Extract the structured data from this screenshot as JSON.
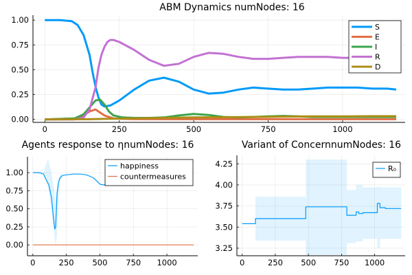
{
  "chart_data": [
    {
      "type": "line",
      "title": "ABM Dynamics numNodes: 16",
      "xlim": [
        -40,
        1210
      ],
      "ylim": [
        -0.03,
        1.05
      ],
      "xticks": [
        0,
        250,
        500,
        750,
        1000
      ],
      "xtick_labels": [
        "0",
        "250",
        "500",
        "750",
        "1000"
      ],
      "yticks": [
        0,
        0.25,
        0.5,
        0.75,
        1
      ],
      "ytick_labels": [
        "0.00",
        "0.25",
        "0.50",
        "0.75",
        "1.00"
      ],
      "grid": true,
      "legend_position": "top-right",
      "series": [
        {
          "name": "S",
          "color": "#009af9",
          "x": [
            0,
            50,
            90,
            110,
            130,
            150,
            160,
            170,
            180,
            190,
            200,
            220,
            250,
            300,
            350,
            400,
            450,
            500,
            550,
            600,
            650,
            700,
            750,
            800,
            850,
            900,
            950,
            1000,
            1050,
            1100,
            1150,
            1180
          ],
          "y": [
            1.0,
            1.0,
            0.99,
            0.95,
            0.85,
            0.65,
            0.48,
            0.33,
            0.22,
            0.15,
            0.13,
            0.14,
            0.19,
            0.3,
            0.39,
            0.42,
            0.38,
            0.3,
            0.26,
            0.27,
            0.3,
            0.32,
            0.31,
            0.3,
            0.3,
            0.31,
            0.32,
            0.32,
            0.32,
            0.31,
            0.31,
            0.3
          ]
        },
        {
          "name": "E",
          "color": "#e26f46",
          "x": [
            0,
            100,
            130,
            150,
            170,
            180,
            200,
            230,
            260,
            300,
            400,
            600,
            800,
            1000,
            1180
          ],
          "y": [
            0.0,
            0.01,
            0.04,
            0.08,
            0.1,
            0.08,
            0.04,
            0.01,
            0.005,
            0.003,
            0.002,
            0.002,
            0.002,
            0.002,
            0.002
          ]
        },
        {
          "name": "I",
          "color": "#3da44d",
          "x": [
            0,
            100,
            130,
            150,
            170,
            185,
            200,
            215,
            230,
            260,
            300,
            350,
            400,
            450,
            500,
            550,
            600,
            650,
            700,
            750,
            800,
            850,
            900,
            950,
            1000,
            1050,
            1100,
            1180
          ],
          "y": [
            0.0,
            0.01,
            0.05,
            0.12,
            0.19,
            0.2,
            0.15,
            0.08,
            0.04,
            0.02,
            0.015,
            0.015,
            0.02,
            0.04,
            0.055,
            0.045,
            0.025,
            0.02,
            0.025,
            0.03,
            0.035,
            0.03,
            0.025,
            0.025,
            0.025,
            0.025,
            0.025,
            0.025
          ]
        },
        {
          "name": "R",
          "color": "#c271d2",
          "x": [
            0,
            100,
            130,
            150,
            170,
            180,
            190,
            200,
            210,
            220,
            230,
            250,
            300,
            350,
            400,
            450,
            500,
            550,
            600,
            650,
            700,
            750,
            800,
            850,
            900,
            950,
            1000,
            1050,
            1100,
            1150,
            1180
          ],
          "y": [
            0.0,
            0.0,
            0.02,
            0.1,
            0.32,
            0.52,
            0.65,
            0.73,
            0.78,
            0.8,
            0.8,
            0.78,
            0.7,
            0.6,
            0.54,
            0.56,
            0.63,
            0.67,
            0.66,
            0.63,
            0.61,
            0.61,
            0.62,
            0.63,
            0.63,
            0.63,
            0.62,
            0.62,
            0.62,
            0.62,
            0.62
          ]
        },
        {
          "name": "D",
          "color": "#ac8d18",
          "x": [
            0,
            150,
            200,
            300,
            400,
            500,
            600,
            700,
            800,
            900,
            1000,
            1100,
            1180
          ],
          "y": [
            0.0,
            0.002,
            0.005,
            0.01,
            0.015,
            0.02,
            0.022,
            0.025,
            0.028,
            0.03,
            0.03,
            0.032,
            0.032
          ]
        }
      ]
    },
    {
      "type": "line",
      "title": "Agents response to ηnumNodes: 16",
      "xlim": [
        -40,
        1230
      ],
      "ylim": [
        -0.15,
        1.22
      ],
      "xticks": [
        0,
        250,
        500,
        750,
        1000
      ],
      "xtick_labels": [
        "0",
        "250",
        "500",
        "750",
        "1000"
      ],
      "yticks": [
        0,
        0.25,
        0.5,
        0.75,
        1
      ],
      "ytick_labels": [
        "0.00",
        "0.25",
        "0.50",
        "0.75",
        "1.00"
      ],
      "grid": true,
      "legend_position": "top-right",
      "series": [
        {
          "name": "happiness",
          "color": "#009af9",
          "x": [
            0,
            50,
            80,
            100,
            120,
            140,
            150,
            160,
            165,
            170,
            175,
            180,
            190,
            200,
            220,
            250,
            300,
            350,
            400,
            450,
            480,
            500,
            530,
            550
          ],
          "y": [
            1.0,
            1.0,
            0.98,
            0.9,
            0.83,
            0.65,
            0.45,
            0.27,
            0.22,
            0.25,
            0.45,
            0.7,
            0.85,
            0.92,
            0.96,
            0.97,
            0.98,
            0.98,
            0.97,
            0.93,
            0.88,
            0.84,
            0.83,
            0.84
          ]
        },
        {
          "name": "countermeasures",
          "color": "#e26f46",
          "x": [
            0,
            1200
          ],
          "y": [
            0,
            0
          ]
        }
      ],
      "band": {
        "x": [
          0,
          80,
          100,
          110,
          120,
          140,
          160,
          170,
          180,
          200,
          220
        ],
        "upper": [
          1.0,
          1.0,
          1.12,
          1.18,
          1.15,
          1.0,
          0.75,
          0.6,
          0.8,
          0.97,
          0.98
        ],
        "lower": [
          1.0,
          0.98,
          0.88,
          0.82,
          0.72,
          0.45,
          0.12,
          0.0,
          0.12,
          0.88,
          0.94
        ]
      }
    },
    {
      "type": "line",
      "title": "Variant of ConcernnumNodes: 16",
      "xlim": [
        -40,
        1230
      ],
      "ylim": [
        3.16,
        4.35
      ],
      "xticks": [
        0,
        250,
        500,
        750,
        1000
      ],
      "xtick_labels": [
        "0",
        "250",
        "500",
        "750",
        "1000"
      ],
      "yticks": [
        3.25,
        3.5,
        3.75,
        4.0,
        4.25
      ],
      "ytick_labels": [
        "3.25",
        "3.50",
        "3.75",
        "4.00",
        "4.25"
      ],
      "grid": true,
      "legend_position": "top-right",
      "series": [
        {
          "name": "R₀",
          "color": "#009af9",
          "x": [
            0,
            100,
            100,
            480,
            480,
            790,
            790,
            860,
            860,
            880,
            880,
            910,
            910,
            1020,
            1020,
            1040,
            1040,
            1080,
            1080,
            1200
          ],
          "y": [
            3.54,
            3.54,
            3.6,
            3.6,
            3.74,
            3.74,
            3.64,
            3.64,
            3.68,
            3.68,
            3.66,
            3.66,
            3.67,
            3.67,
            3.78,
            3.78,
            3.73,
            3.73,
            3.72,
            3.72
          ]
        }
      ],
      "band": {
        "x": [
          0,
          100,
          100,
          480,
          480,
          790,
          790,
          860,
          860,
          910,
          910,
          1020,
          1020,
          1040,
          1040,
          1200
        ],
        "upper": [
          3.54,
          3.54,
          3.86,
          3.86,
          4.3,
          4.3,
          3.94,
          3.94,
          4.0,
          4.0,
          3.97,
          3.97,
          3.98,
          3.98,
          3.97,
          3.97
        ],
        "lower": [
          3.54,
          3.54,
          3.34,
          3.34,
          3.17,
          3.17,
          3.31,
          3.31,
          3.33,
          3.33,
          3.36,
          3.36,
          3.25,
          3.25,
          3.36,
          3.36
        ]
      }
    }
  ]
}
